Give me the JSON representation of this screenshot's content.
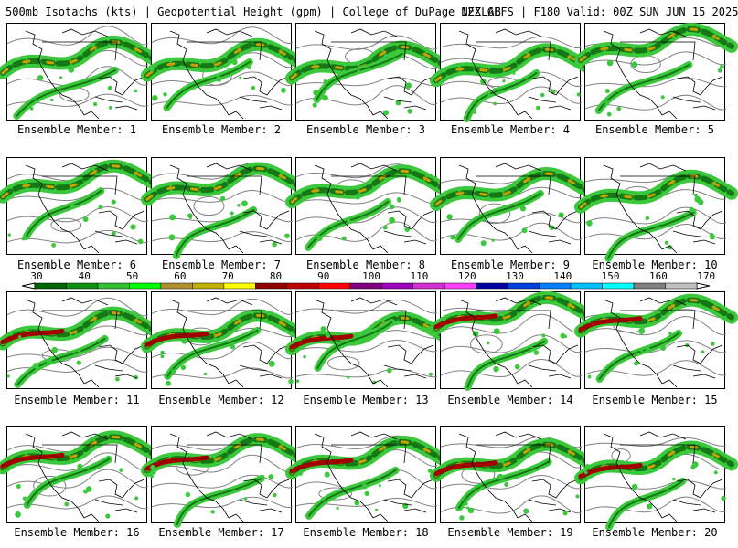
{
  "header": {
    "title": "500mb Isotachs (kts) | Geopotential Height (gpm) | College of DuPage NEXLAB",
    "run_info": "12Z GEFS | F180 Valid: 00Z SUN JUN 15 2025"
  },
  "panels": [
    {
      "label": "Ensemble Member: 1"
    },
    {
      "label": "Ensemble Member: 2"
    },
    {
      "label": "Ensemble Member: 3"
    },
    {
      "label": "Ensemble Member: 4"
    },
    {
      "label": "Ensemble Member: 5"
    },
    {
      "label": "Ensemble Member: 6"
    },
    {
      "label": "Ensemble Member: 7"
    },
    {
      "label": "Ensemble Member: 8"
    },
    {
      "label": "Ensemble Member: 9"
    },
    {
      "label": "Ensemble Member: 10"
    },
    {
      "label": "Ensemble Member: 11"
    },
    {
      "label": "Ensemble Member: 12"
    },
    {
      "label": "Ensemble Member: 13"
    },
    {
      "label": "Ensemble Member: 14"
    },
    {
      "label": "Ensemble Member: 15"
    },
    {
      "label": "Ensemble Member: 16"
    },
    {
      "label": "Ensemble Member: 17"
    },
    {
      "label": "Ensemble Member: 18"
    },
    {
      "label": "Ensemble Member: 19"
    },
    {
      "label": "Ensemble Member: 20"
    }
  ],
  "colorbar": {
    "labels": [
      "30",
      "40",
      "50",
      "60",
      "70",
      "80",
      "90",
      "100",
      "110",
      "120",
      "130",
      "140",
      "150",
      "160",
      "170"
    ],
    "colors": [
      "#006400",
      "#109010",
      "#30c030",
      "#00ff00",
      "#b09030",
      "#c0b000",
      "#ffff00",
      "#900000",
      "#c00000",
      "#ff0000",
      "#800080",
      "#a000c0",
      "#d030d0",
      "#ff40ff",
      "#0000a0",
      "#0040e0",
      "#0080ff",
      "#00c0ff",
      "#00ffff",
      "#808080",
      "#c0c0c0"
    ]
  },
  "map_colors": {
    "jet_light": "#3cc83c",
    "jet_dark": "#147814",
    "jet_core": "#c8a000",
    "jet_max": "#a00000",
    "height_contour": "#808080",
    "coastline": "#000000"
  }
}
